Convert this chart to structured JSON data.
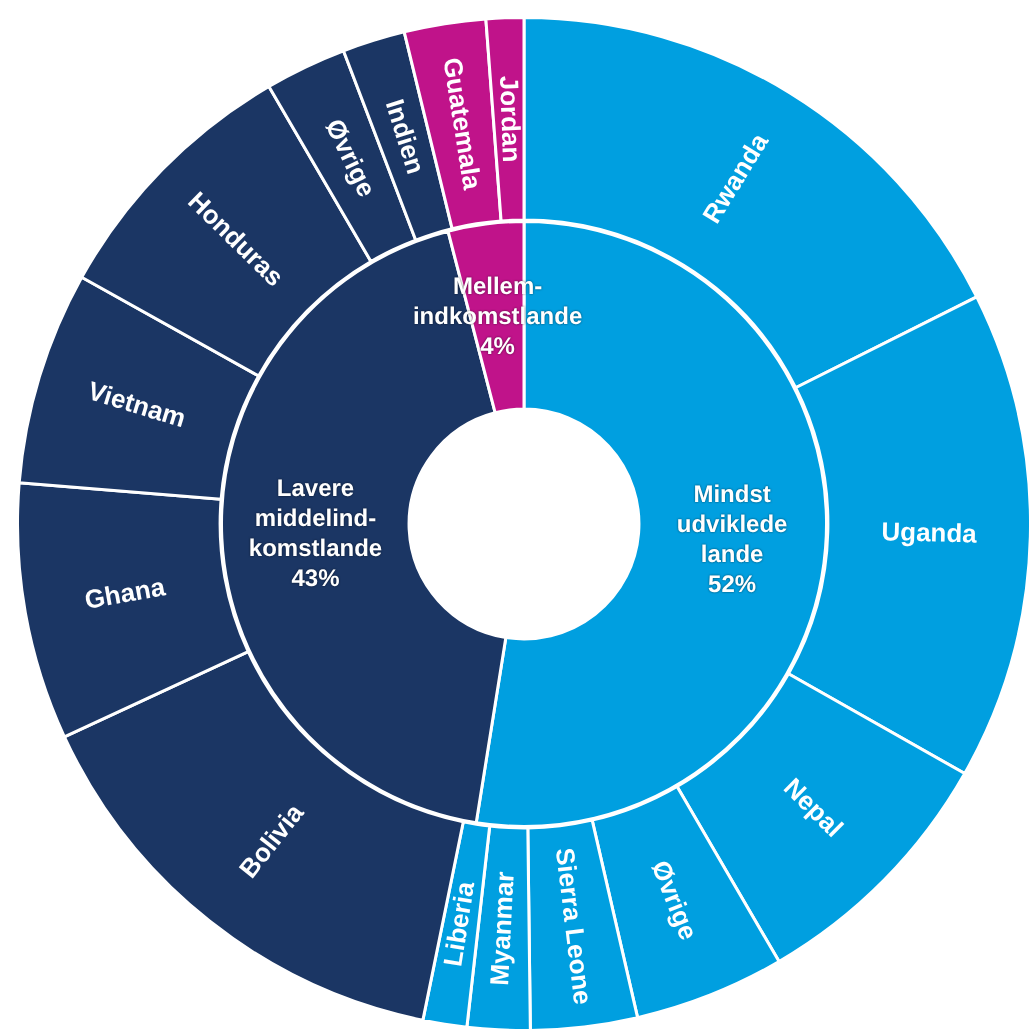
{
  "chart_data": [
    {
      "type": "donut",
      "legend": false,
      "categories": [
        "Mindst udviklede lande",
        "Lavere middelind-komstlande",
        "Mellem-indkomstlande"
      ],
      "values": [
        52,
        43,
        4
      ],
      "colors": [
        "#009fe0",
        "#1b3664",
        "#c0138a"
      ],
      "value_labels": [
        "52%",
        "43%",
        "4%"
      ]
    },
    {
      "type": "donut",
      "legend": false,
      "categories": [
        "Rwanda",
        "Uganda",
        "Nepal",
        "Øvrige",
        "Sierra Leone",
        "Myanmar",
        "Liberia",
        "Bolivia",
        "Ghana",
        "Vietnam",
        "Honduras",
        "Øvrige",
        "Indien",
        "Guatemala",
        "Jordan"
      ],
      "values": [
        17.6,
        15.6,
        8.4,
        4.8,
        3.4,
        2,
        1.4,
        14.9,
        8.2,
        6.8,
        8.5,
        2.6,
        2,
        2.6,
        1.2
      ],
      "colors": [
        "#009fe0",
        "#009fe0",
        "#009fe0",
        "#009fe0",
        "#009fe0",
        "#009fe0",
        "#009fe0",
        "#1b3664",
        "#1b3664",
        "#1b3664",
        "#1b3664",
        "#1b3664",
        "#1b3664",
        "#c0138a",
        "#c0138a"
      ]
    }
  ]
}
